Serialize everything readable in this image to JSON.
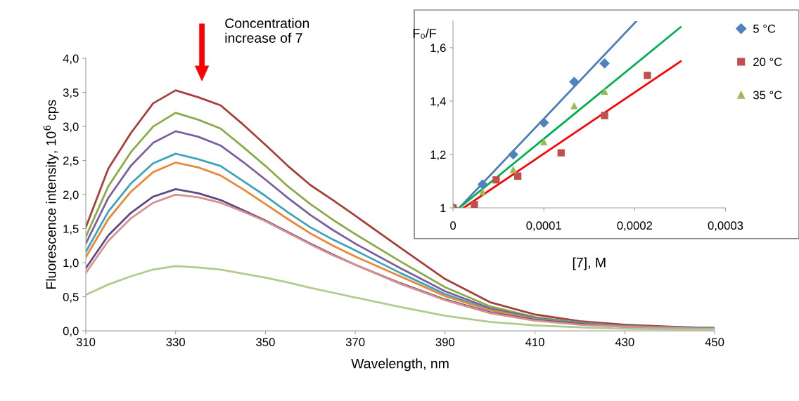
{
  "chart_data": [
    {
      "type": "line",
      "xlabel": "Wavelength, nm",
      "ylabel": "Fluorescence intensity, 10$^{6}$ cps",
      "annotations": [
        "Concentration\nincrease of 7"
      ],
      "x": [
        310,
        315,
        320,
        325,
        330,
        335,
        340,
        345,
        350,
        355,
        360,
        365,
        370,
        380,
        390,
        400,
        410,
        420,
        430,
        440,
        450
      ],
      "series": [
        {
          "color": "#a5403d",
          "values": [
            1.52,
            2.38,
            2.9,
            3.34,
            3.53,
            3.43,
            3.31,
            3.03,
            2.73,
            2.42,
            2.14,
            1.92,
            1.69,
            1.22,
            0.76,
            0.42,
            0.24,
            0.14,
            0.09,
            0.06,
            0.04
          ]
        },
        {
          "color": "#8aab48",
          "values": [
            1.38,
            2.12,
            2.62,
            3.0,
            3.2,
            3.1,
            2.97,
            2.7,
            2.42,
            2.12,
            1.86,
            1.63,
            1.42,
            1.02,
            0.64,
            0.36,
            0.2,
            0.12,
            0.07,
            0.05,
            0.04
          ]
        },
        {
          "color": "#7b5fa0",
          "values": [
            1.28,
            1.95,
            2.42,
            2.76,
            2.93,
            2.85,
            2.72,
            2.48,
            2.22,
            1.95,
            1.7,
            1.48,
            1.28,
            0.92,
            0.58,
            0.33,
            0.19,
            0.11,
            0.07,
            0.05,
            0.04
          ]
        },
        {
          "color": "#3fa3bb",
          "values": [
            1.16,
            1.75,
            2.16,
            2.46,
            2.6,
            2.52,
            2.42,
            2.2,
            1.98,
            1.74,
            1.52,
            1.34,
            1.18,
            0.85,
            0.54,
            0.31,
            0.18,
            0.11,
            0.07,
            0.05,
            0.04
          ]
        },
        {
          "color": "#e8883a",
          "values": [
            1.08,
            1.64,
            2.04,
            2.33,
            2.47,
            2.4,
            2.28,
            2.08,
            1.86,
            1.64,
            1.43,
            1.25,
            1.09,
            0.8,
            0.51,
            0.3,
            0.17,
            0.1,
            0.06,
            0.04,
            0.03
          ]
        },
        {
          "color": "#5d4a85",
          "values": [
            0.92,
            1.4,
            1.73,
            1.97,
            2.08,
            2.02,
            1.92,
            1.77,
            1.62,
            1.45,
            1.28,
            1.12,
            0.97,
            0.7,
            0.46,
            0.27,
            0.16,
            0.1,
            0.06,
            0.04,
            0.03
          ]
        },
        {
          "color": "#d9918f",
          "values": [
            0.85,
            1.32,
            1.65,
            1.88,
            2.0,
            1.96,
            1.88,
            1.75,
            1.61,
            1.44,
            1.27,
            1.11,
            0.97,
            0.69,
            0.45,
            0.26,
            0.15,
            0.09,
            0.06,
            0.04,
            0.03
          ]
        },
        {
          "color": "#b0cc8d",
          "values": [
            0.53,
            0.68,
            0.8,
            0.9,
            0.95,
            0.93,
            0.9,
            0.84,
            0.78,
            0.71,
            0.63,
            0.56,
            0.49,
            0.35,
            0.22,
            0.13,
            0.08,
            0.05,
            0.03,
            0.02,
            0.02
          ]
        }
      ],
      "xlim": [
        310,
        450
      ],
      "xticks": [
        310,
        330,
        350,
        370,
        390,
        410,
        430,
        450
      ],
      "ylim": [
        0,
        4
      ],
      "yticks": [
        {
          "value": 0,
          "label": "0,0"
        },
        {
          "value": 0.5,
          "label": "0,5"
        },
        {
          "value": 1,
          "label": "1,0"
        },
        {
          "value": 1.5,
          "label": "1,5"
        },
        {
          "value": 2,
          "label": "2,0"
        },
        {
          "value": 2.5,
          "label": "2,5"
        },
        {
          "value": 3,
          "label": "3,0"
        },
        {
          "value": 3.5,
          "label": "3,5"
        },
        {
          "value": 4,
          "label": "4,0"
        }
      ],
      "grid": false,
      "line_style": "solid",
      "marker": "none"
    },
    {
      "type": "scatter",
      "xlabel": "[7], M",
      "ylabel": "F₀/F",
      "legend": "right",
      "grid": false,
      "series": [
        {
          "name": "5 °C",
          "color": "#4f81bd",
          "marker": "diamond",
          "x": [
            0,
            3.26e-05,
            6.63e-05,
            0.0001,
            0.0001334,
            0.0001669
          ],
          "values": [
            1.0,
            1.088,
            1.2,
            1.319,
            1.472,
            1.541
          ]
        },
        {
          "name": "20 °C",
          "color": "#c0504d",
          "marker": "square",
          "x": [
            0,
            2.35e-05,
            4.75e-05,
            7.13e-05,
            0.000119,
            0.0001669,
            0.000214
          ],
          "values": [
            1.0,
            1.012,
            1.105,
            1.119,
            1.206,
            1.346,
            1.496
          ]
        },
        {
          "name": "35 °C",
          "color": "#9bbb59",
          "marker": "triangle",
          "x": [
            0,
            3.26e-05,
            6.63e-05,
            0.0001,
            0.0001334,
            0.0001669
          ],
          "values": [
            1.0,
            1.06,
            1.144,
            1.248,
            1.383,
            1.437
          ]
        },
        {
          "type": "line",
          "color": "#4a7ebb",
          "x": [
            6.9e-06,
            0.000202
          ],
          "values": [
            1.0,
            1.7
          ]
        },
        {
          "type": "line",
          "color": "#00b050",
          "x": [
            6.9e-06,
            0.0002506
          ],
          "values": [
            1.0,
            1.677
          ]
        },
        {
          "type": "line",
          "color": "#ff0000",
          "x": [
            1.16e-05,
            0.0002506
          ],
          "values": [
            1.0,
            1.549
          ]
        }
      ],
      "xlim": [
        0,
        0.0003
      ],
      "xticks": [
        0,
        {
          "value": 0.0001,
          "label": "0,0001"
        },
        {
          "value": 0.0002,
          "label": "0,0002"
        },
        {
          "value": 0.0003,
          "label": "0,0003"
        }
      ],
      "ylim": [
        1,
        1.7
      ],
      "yticks": [
        1,
        {
          "value": 1.2,
          "label": "1,2"
        },
        {
          "value": 1.4,
          "label": "1,4"
        },
        {
          "value": 1.6,
          "label": "1,6"
        }
      ]
    }
  ]
}
